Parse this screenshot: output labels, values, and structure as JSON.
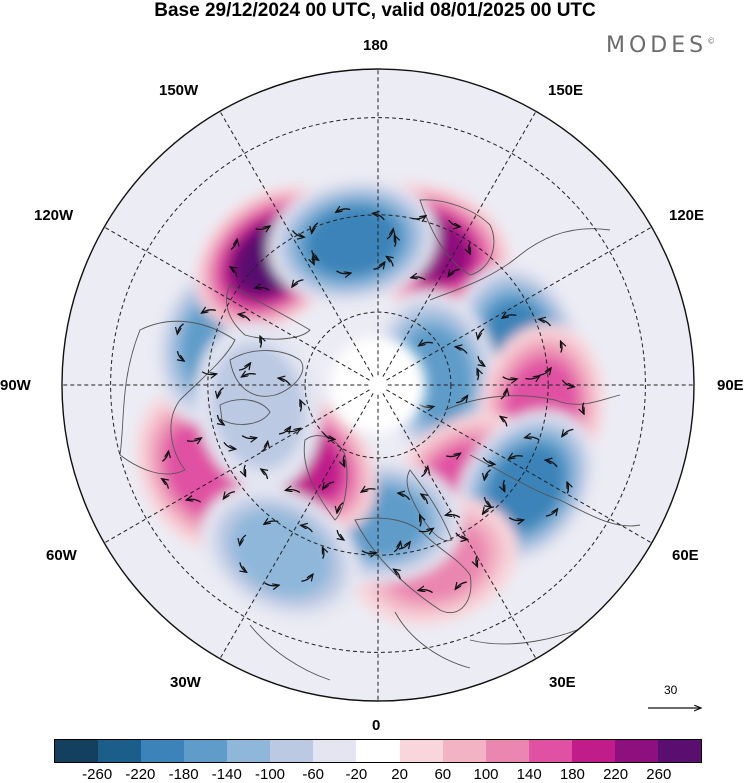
{
  "title": "Base 29/12/2024 00 UTC, valid 08/01/2025 00 UTC",
  "brand": "MODES",
  "brand_mark": "©",
  "meridian_labels": {
    "lon_180": "180",
    "lon_150e": "150E",
    "lon_120e": "120E",
    "lon_90e": "90E",
    "lon_60e": "60E",
    "lon_30e": "30E",
    "lon_0": "0",
    "lon_30w": "30W",
    "lon_60w": "60W",
    "lon_90w": "90W",
    "lon_120w": "120W",
    "lon_150w": "150W"
  },
  "vector_reference": {
    "value": "30",
    "icon": "arrow-right-icon"
  },
  "colorbar": {
    "colors": [
      "#13405e",
      "#1b5e8a",
      "#3b83b8",
      "#5f9cc9",
      "#8fb7da",
      "#bcc9e3",
      "#e3e5f1",
      "#ffffff",
      "#f8d6dc",
      "#f2b3c4",
      "#ea86b0",
      "#e051a3",
      "#c01d8b",
      "#8e0f7e",
      "#5a0f70"
    ],
    "tick_labels": [
      "-260",
      "-220",
      "-180",
      "-140",
      "-100",
      "-60",
      "-20",
      "20",
      "60",
      "100",
      "140",
      "180",
      "220",
      "260"
    ]
  },
  "anomaly_features": [
    {
      "sign": "positive",
      "lon": 160,
      "colat": 30,
      "level": 220
    },
    {
      "sign": "negative",
      "lon": 105,
      "colat": 30,
      "level": -180
    },
    {
      "sign": "negative",
      "lon": 100,
      "colat": 12,
      "level": -160
    },
    {
      "sign": "positive",
      "lon": 82,
      "colat": 34,
      "level": 140
    },
    {
      "sign": "positive",
      "lon": 40,
      "colat": 27,
      "level": 140
    },
    {
      "sign": "negative",
      "lon": 55,
      "colat": 37,
      "level": -180
    },
    {
      "sign": "positive",
      "lon": 18,
      "colat": 38,
      "level": 120
    },
    {
      "sign": "negative",
      "lon": 0,
      "colat": 28,
      "level": -160
    },
    {
      "sign": "positive",
      "lon": -45,
      "colat": 22,
      "level": 180
    },
    {
      "sign": "positive",
      "lon": -64,
      "colat": 40,
      "level": 140
    },
    {
      "sign": "negative",
      "lon": -30,
      "colat": 40,
      "level": -100
    },
    {
      "sign": "negative",
      "lon": -105,
      "colat": 34,
      "level": -140
    },
    {
      "sign": "positive",
      "lon": -140,
      "colat": 34,
      "level": 260
    },
    {
      "sign": "negative",
      "lon": -170,
      "colat": 30,
      "level": -180
    },
    {
      "sign": "negative",
      "lon": -80,
      "colat": 25,
      "level": -60
    }
  ]
}
